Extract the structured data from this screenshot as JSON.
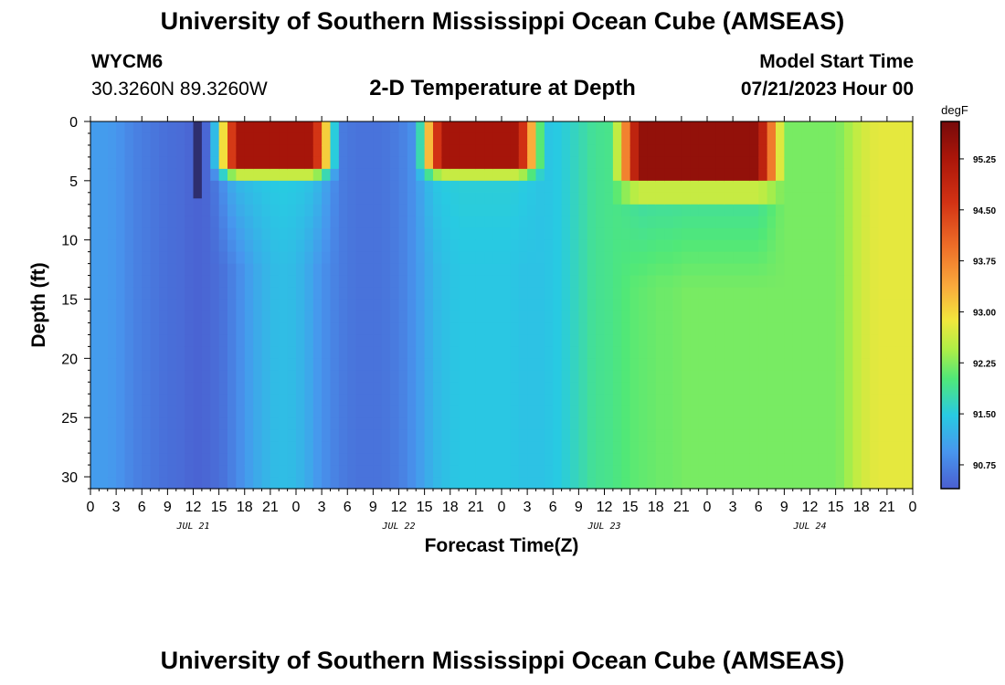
{
  "header": {
    "title": "University of Southern Mississippi Ocean Cube (AMSEAS)",
    "station": "WYCM6",
    "coordinates": "30.3260N  89.3260W",
    "subtitle": "2-D Temperature at Depth",
    "model_start_label": "Model Start Time",
    "model_start_value": "07/21/2023 Hour 00"
  },
  "footer": {
    "title": "University of Southern Mississippi Ocean Cube (AMSEAS)"
  },
  "chart_data": {
    "type": "heatmap",
    "title": "2-D Temperature at Depth",
    "xlabel": "Forecast Time(Z)",
    "ylabel": "Depth (ft)",
    "x_range_hours": [
      0,
      96
    ],
    "y_range_ft": [
      0,
      31
    ],
    "x_tick_labels": [
      "0",
      "3",
      "6",
      "9",
      "12",
      "15",
      "18",
      "21",
      "0",
      "3",
      "6",
      "9",
      "12",
      "15",
      "18",
      "21",
      "0",
      "3",
      "6",
      "9",
      "12",
      "15",
      "18",
      "21",
      "0",
      "3",
      "6",
      "9",
      "12",
      "15",
      "18",
      "21",
      "0"
    ],
    "date_labels": [
      {
        "label": "JUL 21",
        "hour": 12
      },
      {
        "label": "JUL 22",
        "hour": 36
      },
      {
        "label": "JUL 23",
        "hour": 60
      },
      {
        "label": "JUL 24",
        "hour": 84
      }
    ],
    "y_ticks": [
      0,
      5,
      10,
      15,
      20,
      25,
      30
    ],
    "colorbar": {
      "unit": "degF",
      "min": 90.4,
      "max": 95.8,
      "tick_values": [
        95.25,
        94.5,
        93.75,
        93.0,
        92.25,
        91.5,
        90.75
      ],
      "tick_labels": [
        "95.25",
        "94.50",
        "93.75",
        "93.00",
        "92.25",
        "91.50",
        "90.75"
      ]
    },
    "deep_profile_hours": [
      0,
      2,
      3,
      4,
      5,
      6,
      7,
      8,
      9,
      10,
      11,
      12,
      13,
      14,
      15,
      16,
      17,
      18,
      19,
      20,
      21,
      22,
      23,
      24,
      25,
      26,
      27,
      28,
      29,
      30,
      31,
      32,
      33,
      34,
      35,
      36,
      37,
      38,
      39,
      40,
      41,
      42,
      43,
      44,
      45,
      46,
      47,
      48,
      49,
      50,
      51,
      52,
      53,
      54,
      55,
      56,
      57,
      58,
      59,
      60,
      61,
      62,
      63,
      64,
      65,
      66,
      67,
      68,
      69,
      70,
      71,
      72,
      73,
      74,
      75,
      76,
      77,
      78,
      79,
      80,
      81,
      82,
      83,
      84,
      85,
      86,
      87,
      88,
      89,
      90,
      91,
      92,
      93,
      94,
      95,
      96
    ],
    "deep_profile_degF": [
      91.0,
      91.0,
      90.95,
      90.85,
      90.75,
      90.7,
      90.65,
      90.6,
      90.55,
      90.55,
      90.5,
      90.45,
      90.45,
      90.5,
      90.55,
      90.65,
      90.8,
      90.95,
      91.1,
      91.2,
      91.3,
      91.35,
      91.35,
      91.3,
      91.2,
      91.05,
      90.9,
      90.8,
      90.7,
      90.65,
      90.6,
      90.6,
      90.6,
      90.6,
      90.65,
      90.7,
      90.8,
      90.95,
      91.1,
      91.25,
      91.35,
      91.4,
      91.45,
      91.45,
      91.45,
      91.45,
      91.45,
      91.45,
      91.45,
      91.4,
      91.4,
      91.4,
      91.4,
      91.45,
      91.5,
      91.6,
      91.7,
      91.8,
      91.9,
      91.9,
      91.95,
      92.0,
      92.05,
      92.1,
      92.1,
      92.15,
      92.15,
      92.15,
      92.2,
      92.2,
      92.2,
      92.2,
      92.2,
      92.2,
      92.2,
      92.2,
      92.2,
      92.2,
      92.2,
      92.2,
      92.2,
      92.2,
      92.2,
      92.2,
      92.2,
      92.2,
      92.2,
      92.3,
      92.5,
      92.65,
      92.75,
      92.8,
      92.8,
      92.8,
      92.8,
      92.8
    ],
    "surface_warm_layers": [
      {
        "start_hour": 16,
        "end_hour": 26,
        "bottom_ft": 3.5,
        "degF": 95.3
      },
      {
        "start_hour": 40,
        "end_hour": 50,
        "bottom_ft": 3.5,
        "degF": 95.3
      },
      {
        "start_hour": 63,
        "end_hour": 78,
        "bottom_ft": 5.0,
        "degF": 95.5
      }
    ],
    "cold_column": {
      "start_hour": 12,
      "end_hour": 13,
      "bottom_ft": 6.5,
      "degF": 90.3
    }
  }
}
